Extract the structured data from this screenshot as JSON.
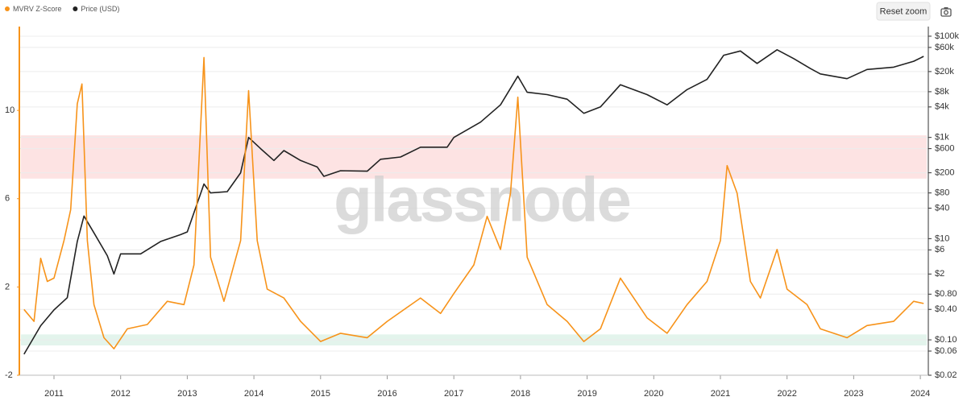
{
  "chart_data": {
    "type": "line",
    "watermark": "glassnode",
    "xlim": [
      2010.48,
      2024.12
    ],
    "xticks": [
      2011,
      2012,
      2013,
      2014,
      2015,
      2016,
      2017,
      2018,
      2019,
      2020,
      2021,
      2022,
      2023,
      2024
    ],
    "ylim": [
      -2,
      13.8
    ],
    "yticks": [
      -2,
      2,
      6,
      10
    ],
    "y2lim": [
      0.02,
      155000
    ],
    "y2log": true,
    "y2ticks": [
      {
        "value": 100000,
        "label": "$100k"
      },
      {
        "value": 60000,
        "label": "$60k"
      },
      {
        "value": 20000,
        "label": "$20k"
      },
      {
        "value": 8000,
        "label": "$8k"
      },
      {
        "value": 4000,
        "label": "$4k"
      },
      {
        "value": 1000,
        "label": "$1k"
      },
      {
        "value": 600,
        "label": "$600"
      },
      {
        "value": 200,
        "label": "$200"
      },
      {
        "value": 80,
        "label": "$80"
      },
      {
        "value": 40,
        "label": "$40"
      },
      {
        "value": 10,
        "label": "$10"
      },
      {
        "value": 6,
        "label": "$6"
      },
      {
        "value": 2,
        "label": "$2"
      },
      {
        "value": 0.8,
        "label": "$0.80"
      },
      {
        "value": 0.4,
        "label": "$0.40"
      },
      {
        "value": 0.1,
        "label": "$0.10"
      },
      {
        "value": 0.06,
        "label": "$0.06"
      },
      {
        "value": 0.02,
        "label": "$0.02"
      }
    ],
    "grid": true,
    "bands": [
      {
        "from": 6.91,
        "to": 8.87,
        "color": "#fde3e3"
      },
      {
        "from": -0.65,
        "to": -0.15,
        "color": "#e3f4ec"
      }
    ],
    "series": [
      {
        "name": "MVRV Z-Score",
        "color": "#f7931a",
        "x": [
          2010.55,
          2010.7,
          2010.8,
          2010.9,
          2011.0,
          2011.15,
          2011.25,
          2011.35,
          2011.42,
          2011.5,
          2011.6,
          2011.75,
          2011.9,
          2012.1,
          2012.4,
          2012.7,
          2012.95,
          2013.1,
          2013.25,
          2013.35,
          2013.55,
          2013.8,
          2013.92,
          2014.05,
          2014.2,
          2014.45,
          2014.7,
          2015.0,
          2015.3,
          2015.7,
          2016.0,
          2016.5,
          2016.8,
          2017.0,
          2017.3,
          2017.5,
          2017.7,
          2017.85,
          2017.96,
          2018.1,
          2018.4,
          2018.7,
          2018.95,
          2019.2,
          2019.5,
          2019.9,
          2020.2,
          2020.5,
          2020.8,
          2021.0,
          2021.1,
          2021.25,
          2021.45,
          2021.6,
          2021.85,
          2022.0,
          2022.3,
          2022.5,
          2022.9,
          2023.2,
          2023.6,
          2023.9,
          2024.05
        ],
        "values": [
          0.98,
          0.44,
          3.3,
          2.25,
          2.4,
          4.1,
          5.5,
          10.3,
          11.2,
          4.1,
          1.2,
          -0.3,
          -0.8,
          0.1,
          0.3,
          1.35,
          1.2,
          3.0,
          12.4,
          3.35,
          1.35,
          4.1,
          10.9,
          4.1,
          1.9,
          1.5,
          0.44,
          -0.47,
          -0.1,
          -0.3,
          0.44,
          1.5,
          0.8,
          1.7,
          3.0,
          5.2,
          3.7,
          6.25,
          10.6,
          3.35,
          1.2,
          0.44,
          -0.47,
          0.1,
          2.4,
          0.6,
          -0.1,
          1.2,
          2.25,
          4.1,
          7.5,
          6.25,
          2.25,
          1.5,
          3.7,
          1.9,
          1.2,
          0.1,
          -0.3,
          0.25,
          0.44,
          1.35,
          1.25
        ]
      },
      {
        "name": "Price (USD)",
        "color": "#222222",
        "axis": "y2",
        "x": [
          2010.55,
          2010.8,
          2011.0,
          2011.2,
          2011.35,
          2011.45,
          2011.6,
          2011.8,
          2011.9,
          2012.0,
          2012.3,
          2012.6,
          2012.9,
          2013.0,
          2013.25,
          2013.35,
          2013.6,
          2013.8,
          2013.92,
          2014.1,
          2014.3,
          2014.45,
          2014.7,
          2014.95,
          2015.05,
          2015.3,
          2015.7,
          2015.9,
          2016.2,
          2016.5,
          2016.9,
          2017.0,
          2017.4,
          2017.7,
          2017.96,
          2018.1,
          2018.4,
          2018.7,
          2018.95,
          2019.2,
          2019.5,
          2019.9,
          2020.2,
          2020.5,
          2020.8,
          2021.05,
          2021.3,
          2021.55,
          2021.85,
          2022.1,
          2022.35,
          2022.5,
          2022.9,
          2023.2,
          2023.6,
          2023.9,
          2024.05
        ],
        "values": [
          0.052,
          0.19,
          0.39,
          0.68,
          8.8,
          28,
          13,
          4.6,
          2.0,
          5,
          5,
          8.8,
          12,
          13.6,
          120,
          80,
          85,
          200,
          1000,
          600,
          350,
          550,
          350,
          260,
          170,
          220,
          215,
          370,
          410,
          640,
          640,
          1000,
          2000,
          4400,
          16200,
          7800,
          7000,
          5700,
          3000,
          4000,
          11000,
          7000,
          4400,
          8800,
          14000,
          42000,
          51000,
          29000,
          54000,
          36000,
          23000,
          18000,
          14500,
          22000,
          24500,
          32000,
          40000
        ]
      }
    ]
  },
  "reset_button": "Reset zoom"
}
